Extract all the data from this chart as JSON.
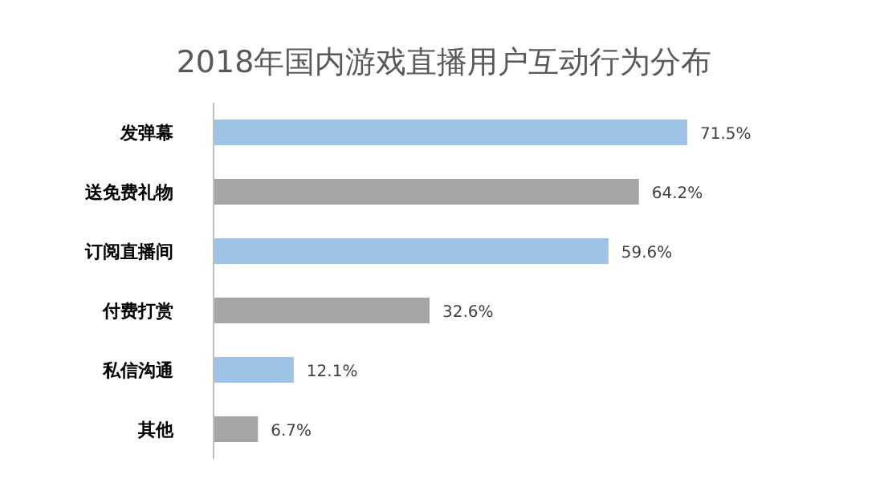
{
  "chart_data": {
    "type": "bar",
    "orientation": "horizontal",
    "title": "2018年国内游戏直播用户互动行为分布",
    "categories": [
      "发弹幕",
      "送免费礼物",
      "订阅直播间",
      "付费打赏",
      "私信沟通",
      "其他"
    ],
    "values": [
      71.5,
      64.2,
      59.6,
      32.6,
      12.1,
      6.7
    ],
    "value_labels": [
      "71.5%",
      "64.2%",
      "59.6%",
      "32.6%",
      "12.1%",
      "6.7%"
    ],
    "colors": [
      "#9dc3e6",
      "#a5a5a5",
      "#9dc3e6",
      "#a5a5a5",
      "#9dc3e6",
      "#a5a5a5"
    ],
    "tick_labels": "y"
  }
}
